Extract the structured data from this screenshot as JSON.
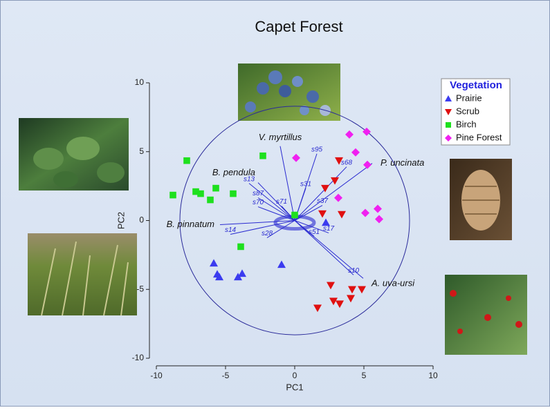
{
  "chart_data": {
    "type": "scatter",
    "title": "Capet Forest",
    "xlabel": "PC1",
    "ylabel": "PC2",
    "xlim": [
      -10,
      10
    ],
    "ylim": [
      -10,
      10
    ],
    "xticks": [
      -10,
      -5,
      0,
      5,
      10
    ],
    "yticks": [
      -10,
      -5,
      0,
      5,
      10
    ],
    "legend_title": "Vegetation",
    "legend_position": "upper right",
    "circle_radius": 8.3,
    "series": [
      {
        "name": "Prairie",
        "color": "#3b3bef",
        "marker": "triangle-up",
        "x": [
          -5.85,
          -5.45,
          -5.6,
          -4.1,
          -3.8,
          -0.95,
          2.25
        ],
        "y": [
          -3.1,
          -4.1,
          -3.9,
          -4.1,
          -3.85,
          -3.2,
          -0.15
        ]
      },
      {
        "name": "Scrub",
        "color": "#e01010",
        "marker": "triangle-down",
        "x": [
          3.2,
          2.9,
          2.2,
          2.0,
          3.4,
          2.6,
          4.15,
          4.85,
          4.05,
          2.8,
          3.25,
          1.65
        ],
        "y": [
          4.35,
          2.9,
          2.35,
          0.5,
          0.45,
          -4.7,
          -5.0,
          -5.0,
          -5.65,
          -5.85,
          -6.05,
          -6.35
        ]
      },
      {
        "name": "Birch",
        "color": "#1ee01e",
        "marker": "square",
        "x": [
          -7.8,
          -2.3,
          -8.8,
          -7.15,
          -6.8,
          -5.7,
          -6.1,
          -4.45,
          -3.9,
          0
        ],
        "y": [
          4.35,
          4.7,
          1.85,
          2.1,
          1.95,
          2.35,
          1.5,
          1.95,
          -1.9,
          0.4
        ]
      },
      {
        "name": "Pine Forest",
        "color": "#f020f0",
        "marker": "diamond",
        "x": [
          0.1,
          3.95,
          5.2,
          4.4,
          5.25,
          3.15,
          6.0,
          5.1,
          6.1
        ],
        "y": [
          4.55,
          6.25,
          6.45,
          4.95,
          4.05,
          1.65,
          0.85,
          0.55,
          0.1
        ]
      }
    ],
    "vectors": [
      {
        "name": "V. myrtillus",
        "x": -1.05,
        "y": 5.4
      },
      {
        "name": "B. pendula",
        "x": -2.65,
        "y": 2.75
      },
      {
        "name": "P. uncinata",
        "x": 5.6,
        "y": 4.15
      },
      {
        "name": "B. pinnatum",
        "x": -5.4,
        "y": -0.3
      },
      {
        "name": "A. uva-ursi",
        "x": 4.95,
        "y": -4.2
      }
    ],
    "sample_vectors": [
      {
        "name": "s95",
        "x": 1.6,
        "y": 4.85
      },
      {
        "name": "s68",
        "x": 3.75,
        "y": 3.9
      },
      {
        "name": "s13",
        "x": -3.3,
        "y": 2.7
      },
      {
        "name": "s31",
        "x": 0.8,
        "y": 2.35
      },
      {
        "name": "s87",
        "x": -2.65,
        "y": 1.65
      },
      {
        "name": "s70",
        "x": -2.65,
        "y": 1.0
      },
      {
        "name": "s71",
        "x": -0.95,
        "y": 1.05
      },
      {
        "name": "s37",
        "x": 2.0,
        "y": 1.1
      },
      {
        "name": "s14",
        "x": -4.65,
        "y": -1.0
      },
      {
        "name": "s28",
        "x": -2.0,
        "y": -1.25
      },
      {
        "name": "s51",
        "x": 1.4,
        "y": -1.15
      },
      {
        "name": "s17",
        "x": 2.45,
        "y": -0.9
      },
      {
        "name": "s10",
        "x": 4.25,
        "y": -3.95
      }
    ]
  }
}
